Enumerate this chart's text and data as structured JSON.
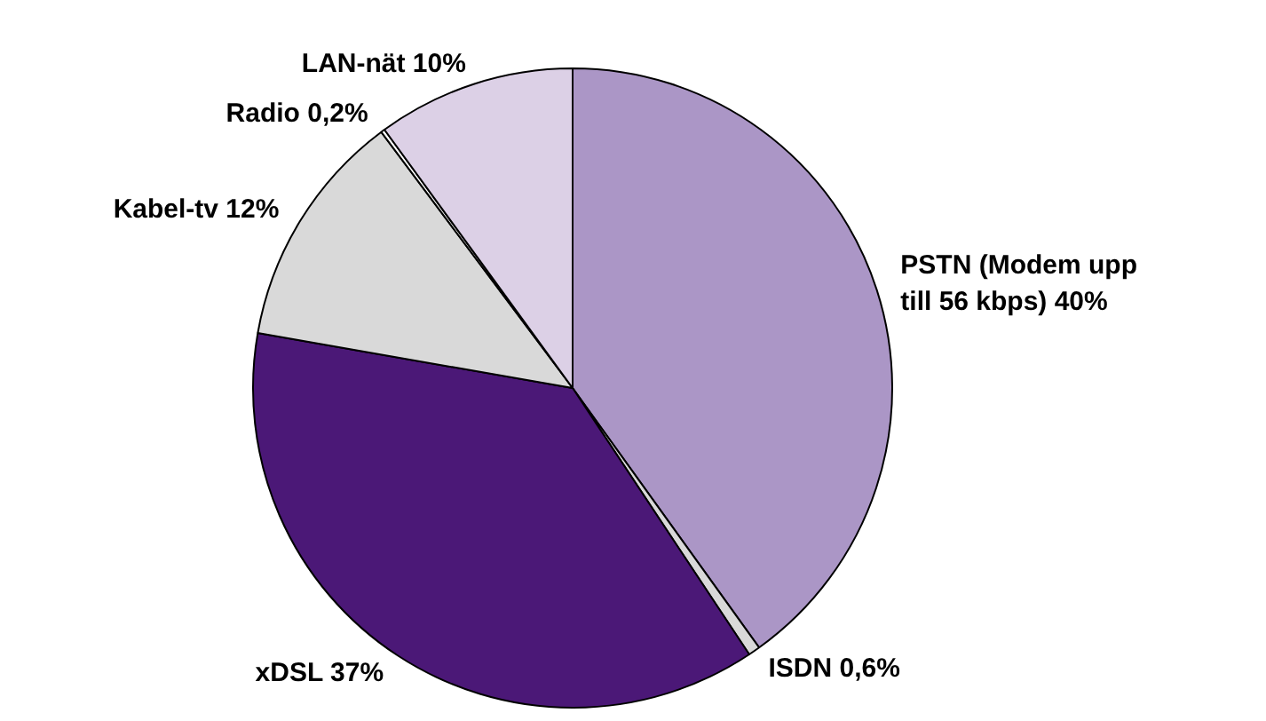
{
  "chart_data": {
    "type": "pie",
    "categories": [
      "PSTN (Modem upp till 56 kbps)",
      "ISDN",
      "xDSL",
      "Kabel-tv",
      "Radio",
      "LAN-nät"
    ],
    "values": [
      40,
      0.6,
      37,
      12,
      0.2,
      10
    ],
    "value_labels": [
      "40%",
      "0,6%",
      "37%",
      "12%",
      "0,2%",
      "10%"
    ],
    "colors": [
      "#ab96c6",
      "#d9d9d9",
      "#4b1877",
      "#d9d9d9",
      "#ffffff",
      "#dcd0e6"
    ]
  }
}
